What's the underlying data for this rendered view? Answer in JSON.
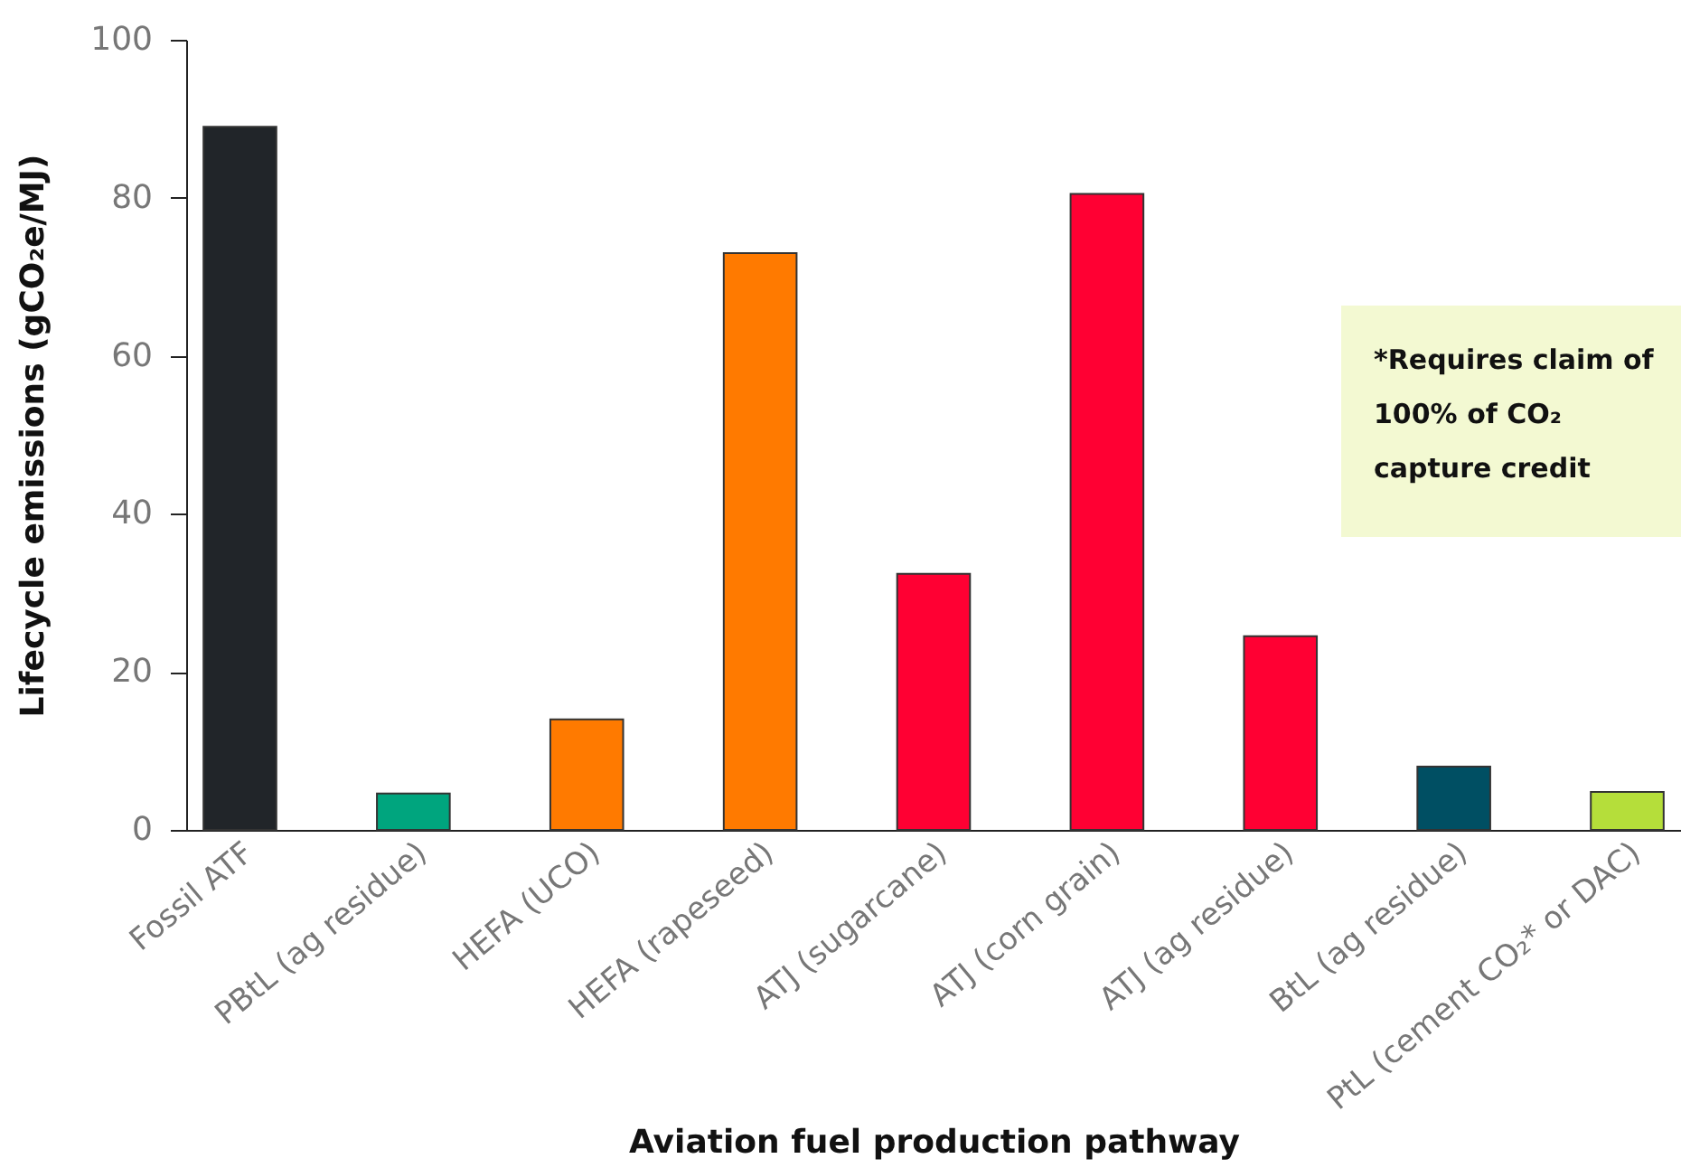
{
  "chart_data": {
    "type": "bar",
    "xlabel": "Aviation fuel production pathway",
    "ylabel": "Lifecycle emissions (gCO₂e/MJ)",
    "categories": [
      "Fossil ATF",
      "PBtL (ag residue)",
      "HEFA (UCO)",
      "HEFA (rapeseed)",
      "ATJ (sugarcane)",
      "ATJ (corn grain)",
      "ATJ (ag residue)",
      "BtL (ag residue)",
      "PtL (cement CO₂* or DAC)"
    ],
    "values": [
      89,
      4.6,
      14,
      73,
      32.4,
      80.5,
      24.5,
      8,
      4.8
    ],
    "colors": [
      "#212529",
      "#00a57e",
      "#ff7a00",
      "#ff7a00",
      "#ff0033",
      "#ff0033",
      "#ff0033",
      "#004f63",
      "#b5de3a"
    ],
    "ylim": [
      0,
      100
    ],
    "yticks": [
      0,
      20,
      40,
      60,
      80,
      100
    ],
    "grid": false,
    "annotations": [
      "*Requires claim of 100% of CO₂ capture credit"
    ]
  }
}
